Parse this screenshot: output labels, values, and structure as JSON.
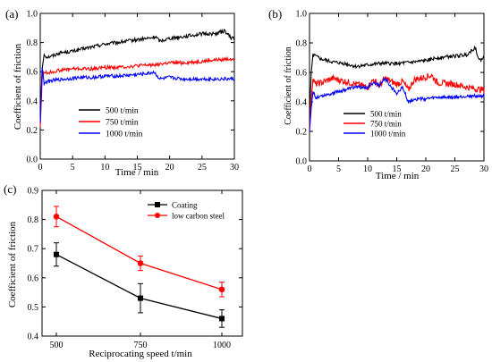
{
  "chart_data": [
    {
      "panel_label": "(a)",
      "type": "line",
      "xlabel": "Time / min",
      "ylabel": "Coefficient of friction",
      "xlim": [
        0,
        30
      ],
      "ylim": [
        0.0,
        1.0
      ],
      "xticks": [
        "0",
        "5",
        "10",
        "15",
        "20",
        "25",
        "30"
      ],
      "yticks": [
        "0.0",
        "0.2",
        "0.4",
        "0.6",
        "0.8",
        "1.0"
      ],
      "legend": {
        "placement": "bottom-center"
      },
      "series": [
        {
          "name": "500 t/min",
          "color": "#000000",
          "x": [
            0,
            0.3,
            0.6,
            1,
            2,
            3,
            5,
            7,
            10,
            12,
            15,
            17,
            17.8,
            18.5,
            20,
            22,
            25,
            27,
            28.5,
            29.5,
            30
          ],
          "y": [
            0.27,
            0.62,
            0.72,
            0.7,
            0.71,
            0.73,
            0.74,
            0.76,
            0.79,
            0.8,
            0.82,
            0.83,
            0.84,
            0.81,
            0.83,
            0.84,
            0.86,
            0.86,
            0.88,
            0.83,
            0.84
          ]
        },
        {
          "name": "750 t/min",
          "color": "#ff0000",
          "x": [
            0,
            0.3,
            0.6,
            1,
            2,
            3,
            5,
            8,
            10,
            12,
            15,
            18,
            20,
            22,
            25,
            27,
            30
          ],
          "y": [
            0.22,
            0.55,
            0.6,
            0.59,
            0.6,
            0.61,
            0.62,
            0.62,
            0.63,
            0.63,
            0.64,
            0.65,
            0.66,
            0.66,
            0.67,
            0.68,
            0.69
          ]
        },
        {
          "name": "1000 t/min",
          "color": "#0000ff",
          "x": [
            0,
            0.3,
            0.6,
            1,
            2,
            4,
            6,
            8,
            10,
            12,
            15,
            17,
            17.5,
            18.5,
            20,
            22,
            25,
            27,
            30
          ],
          "y": [
            0.25,
            0.63,
            0.52,
            0.53,
            0.54,
            0.55,
            0.56,
            0.56,
            0.57,
            0.57,
            0.58,
            0.59,
            0.6,
            0.55,
            0.56,
            0.55,
            0.55,
            0.55,
            0.55
          ]
        }
      ]
    },
    {
      "panel_label": "(b)",
      "type": "line",
      "xlabel": "Time / min",
      "ylabel": "Coefficient of friction",
      "xlim": [
        0,
        30
      ],
      "ylim": [
        0.0,
        1.0
      ],
      "xticks": [
        "0",
        "5",
        "10",
        "15",
        "20",
        "25",
        "30"
      ],
      "yticks": [
        "0.0",
        "0.2",
        "0.4",
        "0.6",
        "0.8",
        "1.0"
      ],
      "legend": {
        "placement": "bottom-center"
      },
      "series": [
        {
          "name": "500 t/min",
          "color": "#000000",
          "x": [
            0,
            0.3,
            0.6,
            1,
            2,
            4,
            6,
            8,
            10,
            12,
            15,
            18,
            20,
            22,
            25,
            27,
            28.5,
            29.2,
            30
          ],
          "y": [
            0.3,
            0.6,
            0.72,
            0.71,
            0.69,
            0.67,
            0.66,
            0.64,
            0.65,
            0.66,
            0.66,
            0.67,
            0.68,
            0.7,
            0.71,
            0.72,
            0.77,
            0.68,
            0.7
          ]
        },
        {
          "name": "750 t/min",
          "color": "#ff0000",
          "x": [
            0,
            0.3,
            0.6,
            1,
            2,
            4,
            6,
            8,
            10,
            11,
            12,
            13,
            15,
            16,
            17,
            18,
            20,
            21,
            22,
            25,
            27,
            30
          ],
          "y": [
            0.22,
            0.42,
            0.55,
            0.52,
            0.53,
            0.56,
            0.54,
            0.52,
            0.5,
            0.55,
            0.51,
            0.56,
            0.52,
            0.54,
            0.48,
            0.55,
            0.57,
            0.58,
            0.53,
            0.52,
            0.5,
            0.48
          ]
        },
        {
          "name": "1000 t/min",
          "color": "#0000ff",
          "x": [
            0,
            0.3,
            0.6,
            1,
            2,
            4,
            6,
            8,
            10,
            11,
            12,
            13,
            14,
            15,
            16,
            17,
            18,
            20,
            22,
            25,
            27,
            30
          ],
          "y": [
            0.2,
            0.36,
            0.47,
            0.43,
            0.44,
            0.46,
            0.48,
            0.5,
            0.5,
            0.53,
            0.51,
            0.56,
            0.5,
            0.46,
            0.5,
            0.4,
            0.42,
            0.42,
            0.43,
            0.43,
            0.44,
            0.44
          ]
        }
      ]
    },
    {
      "panel_label": "(c)",
      "type": "line",
      "xlabel": "Reciprocating speed t/min",
      "ylabel": "Coefficient of friction",
      "categories": [
        "500",
        "750",
        "1000"
      ],
      "ylim": [
        0.4,
        0.9
      ],
      "yticks": [
        "0.4",
        "0.5",
        "0.6",
        "0.7",
        "0.8",
        "0.9"
      ],
      "legend": {
        "placement": "top-right"
      },
      "series": [
        {
          "name": "Coating",
          "color": "#000000",
          "marker": "square",
          "values": [
            0.68,
            0.53,
            0.46
          ],
          "errors": [
            0.04,
            0.05,
            0.03
          ]
        },
        {
          "name": "low carbon steel",
          "color": "#ff0000",
          "marker": "circle",
          "values": [
            0.81,
            0.65,
            0.56
          ],
          "errors": [
            0.035,
            0.025,
            0.025
          ]
        }
      ]
    }
  ]
}
